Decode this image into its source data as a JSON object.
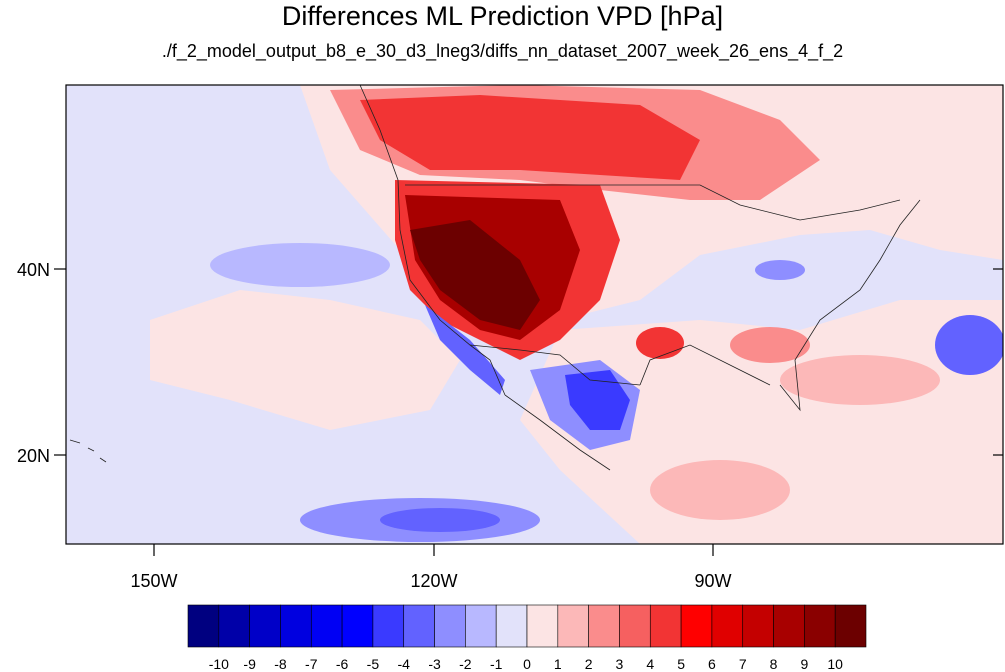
{
  "title": "Differences ML Prediction VPD [hPa]",
  "subtitle": "./f_2_model_output_b8_e_30_d3_lneg3/diffs_nn_dataset_2007_week_26_ens_4_f_2",
  "axes": {
    "lat_labels": [
      "40N",
      "20N"
    ],
    "lon_labels": [
      "150W",
      "120W",
      "90W"
    ]
  },
  "colorbar": {
    "labels": [
      "-10",
      "-9",
      "-8",
      "-7",
      "-6",
      "-5",
      "-4",
      "-3",
      "-2",
      "-1",
      "0",
      "1",
      "2",
      "3",
      "4",
      "5",
      "6",
      "7",
      "8",
      "9",
      "10"
    ],
    "colors": [
      "#000080",
      "#0000a8",
      "#0000c8",
      "#0000e0",
      "#0000f4",
      "#0000ff",
      "#3a3aff",
      "#6262ff",
      "#8e8eff",
      "#b8b8ff",
      "#e2e2fa",
      "#fce4e4",
      "#fcb8b8",
      "#fa8c8c",
      "#f66060",
      "#f23434",
      "#ff0000",
      "#e00000",
      "#c40000",
      "#a80000",
      "#8a0000",
      "#6c0000"
    ]
  },
  "map_regions": [
    {
      "name": "northwest-warm",
      "color": "#f23434"
    },
    {
      "name": "west-interior-hot",
      "color": "#a80000"
    },
    {
      "name": "core-southwest",
      "color": "#6c0000"
    },
    {
      "name": "canada-warm",
      "color": "#f66060"
    },
    {
      "name": "mexico-cool",
      "color": "#3a3aff"
    },
    {
      "name": "baja-coast-cool",
      "color": "#6262ff"
    },
    {
      "name": "pacific-south-cool",
      "color": "#8e8eff"
    },
    {
      "name": "atlantic-east-cool",
      "color": "#6262ff"
    },
    {
      "name": "gulf-warm",
      "color": "#fa8c8c"
    },
    {
      "name": "caribbean-warm",
      "color": "#fcb8b8"
    },
    {
      "name": "ohio-valley-cool",
      "color": "#8e8eff"
    }
  ]
}
